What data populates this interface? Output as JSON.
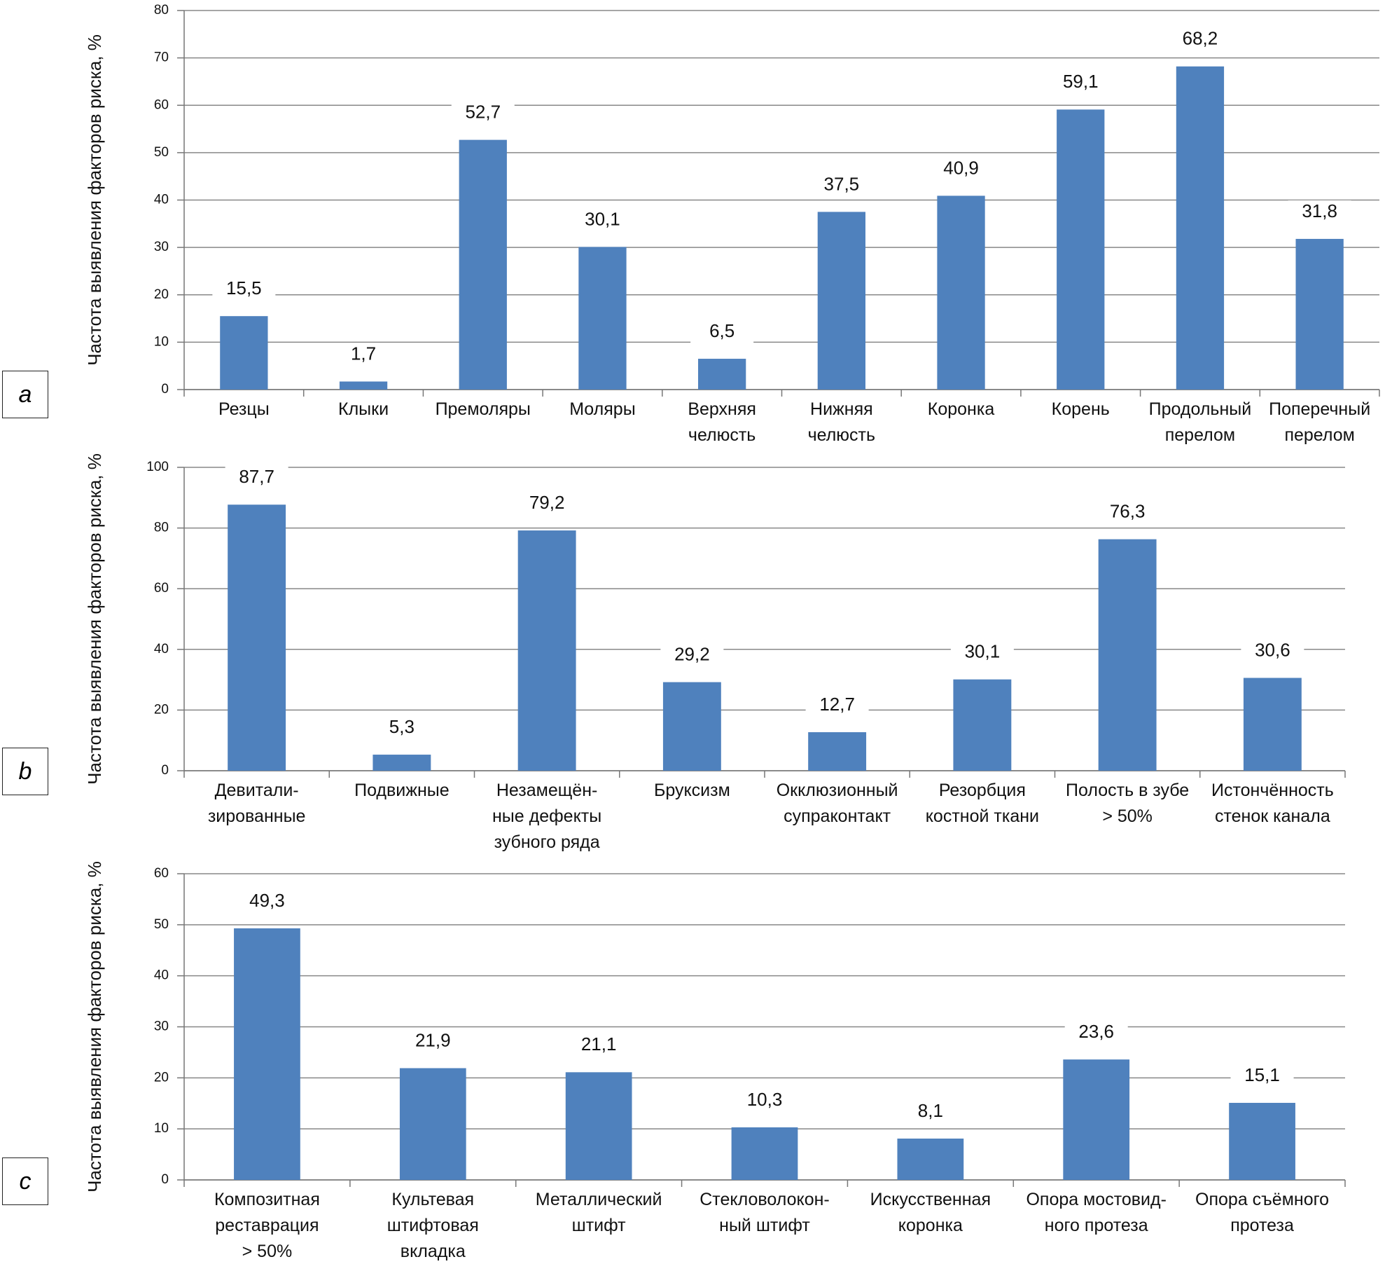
{
  "chart_data": [
    {
      "type": "bar",
      "panel": "a",
      "ylabel": "Частота выявления факторов риска, %",
      "color": "#4f81bd",
      "grid": true,
      "categories": [
        "Резцы",
        "Клыки",
        "Премоляры",
        "Моляры",
        "Верхняя\nчелюсть",
        "Нижняя\nчелюсть",
        "Коронка",
        "Корень",
        "Продольный\nперелом",
        "Поперечный\nперелом"
      ],
      "values": [
        15.5,
        1.7,
        52.7,
        30.1,
        6.5,
        37.5,
        40.9,
        59.1,
        68.2,
        31.8
      ],
      "value_labels": [
        "15,5",
        "1,7",
        "52,7",
        "30,1",
        "6,5",
        "37,5",
        "40,9",
        "59,1",
        "68,2",
        "31,8"
      ],
      "ylim": [
        0,
        80
      ],
      "yticks": [
        0,
        10,
        20,
        30,
        40,
        50,
        60,
        70,
        80
      ]
    },
    {
      "type": "bar",
      "panel": "b",
      "ylabel": "Частота выявления факторов риска, %",
      "color": "#4f81bd",
      "grid": true,
      "categories": [
        "Девитали-\nзированные",
        "Подвижные",
        "Незамещён-\nные дефекты\nзубного ряда",
        "Бруксизм",
        "Окклюзионный\nсупраконтакт",
        "Резорбция\nкостной ткани",
        "Полость в зубе\n> 50%",
        "Истончённость\nстенок канала"
      ],
      "values": [
        87.7,
        5.3,
        79.2,
        29.2,
        12.7,
        30.1,
        76.3,
        30.6
      ],
      "value_labels": [
        "87,7",
        "5,3",
        "79,2",
        "29,2",
        "12,7",
        "30,1",
        "76,3",
        "30,6"
      ],
      "ylim": [
        0,
        100
      ],
      "yticks": [
        0,
        20,
        40,
        60,
        80,
        100
      ]
    },
    {
      "type": "bar",
      "panel": "c",
      "ylabel": "Частота выявления факторов риска, %",
      "color": "#4f81bd",
      "grid": true,
      "categories": [
        "Композитная\nреставрация\n> 50%",
        "Культевая\nштифтовая\nвкладка",
        "Металлический\nштифт",
        "Стекловолокон-\nный штифт",
        "Искусственная\nкоронка",
        "Опора мостовид-\nного протеза",
        "Опора съёмного\nпротеза"
      ],
      "values": [
        49.3,
        21.9,
        21.1,
        10.3,
        8.1,
        23.6,
        15.1
      ],
      "value_labels": [
        "49,3",
        "21,9",
        "21,1",
        "10,3",
        "8,1",
        "23,6",
        "15,1"
      ],
      "ylim": [
        0,
        60
      ],
      "yticks": [
        0,
        10,
        20,
        30,
        40,
        50,
        60
      ]
    }
  ]
}
